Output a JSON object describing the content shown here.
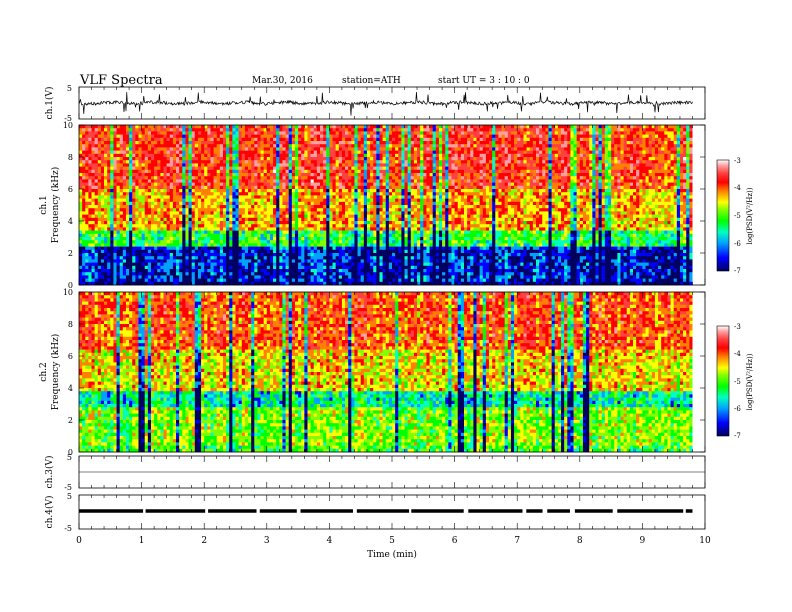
{
  "header": {
    "title": "VLF  Spectra",
    "date": "Mar.30, 2016",
    "station": "station=ATH",
    "start": "start  UT  =   3  : 10 : 0"
  },
  "chart_data": [
    {
      "type": "line",
      "ylabel": "ch.1(V)",
      "ylim": [
        -5,
        5
      ],
      "yticks": [
        "5",
        "-5"
      ],
      "xlim": [
        0,
        10
      ],
      "note": "noisy waveform around 0 V with spikes"
    },
    {
      "type": "heatmap",
      "ylabel": "ch.1\nFrequency  (kHz)",
      "ylabel_lines": [
        "ch.1",
        "Frequency  (kHz)"
      ],
      "ylim": [
        0,
        10
      ],
      "yticks": [
        "0",
        "2",
        "4",
        "6",
        "8",
        "10"
      ],
      "xlim": [
        0,
        9.8
      ],
      "colorbar": {
        "label": "log(PSD(V²/Hz))",
        "range": [
          -7,
          -3
        ],
        "ticks": [
          "-3",
          "-4",
          "-5",
          "-6",
          "-7"
        ],
        "colors": [
          "#000060",
          "#0000ff",
          "#00a0ff",
          "#00ffc0",
          "#00ff00",
          "#80ff00",
          "#ffff00",
          "#ff8000",
          "#ff0000",
          "#ff4040",
          "#ffa0a0",
          "#ffffff"
        ]
      },
      "description_bands": [
        {
          "f_low": 0.0,
          "f_high": 0.3,
          "level": -6.8
        },
        {
          "f_low": 0.3,
          "f_high": 2.5,
          "level": -6.5
        },
        {
          "f_low": 2.5,
          "f_high": 3.5,
          "level": -5.5
        },
        {
          "f_low": 3.5,
          "f_high": 6.0,
          "level": -4.6
        },
        {
          "f_low": 6.0,
          "f_high": 10.0,
          "level": -4.1
        }
      ]
    },
    {
      "type": "heatmap",
      "ylabel_lines": [
        "ch.2",
        "Frequency  (kHz)"
      ],
      "ylim": [
        0,
        10
      ],
      "yticks": [
        "0",
        "2",
        "4",
        "6",
        "8",
        "10"
      ],
      "xlim": [
        0,
        9.8
      ],
      "colorbar": {
        "label": "log(PSD(V²/Hz))",
        "range": [
          -7,
          -3
        ],
        "ticks": [
          "-3",
          "-4",
          "-5",
          "-6",
          "-7"
        ]
      },
      "description_bands": [
        {
          "f_low": 0.0,
          "f_high": 0.4,
          "level": -5.4
        },
        {
          "f_low": 0.4,
          "f_high": 2.8,
          "level": -5.2
        },
        {
          "f_low": 2.8,
          "f_high": 3.8,
          "level": -5.8
        },
        {
          "f_low": 3.8,
          "f_high": 6.5,
          "level": -4.8
        },
        {
          "f_low": 6.5,
          "f_high": 10.0,
          "level": -4.3
        }
      ]
    },
    {
      "type": "line",
      "ylabel": "ch.3(V)",
      "ylim": [
        -5,
        5
      ],
      "yticks": [
        "5",
        "-5"
      ],
      "note": "flat trace near 0 V"
    },
    {
      "type": "line",
      "ylabel": "ch.4(V)",
      "ylim": [
        -5,
        5
      ],
      "yticks": [
        "5",
        "-5"
      ],
      "note": "thick dashed trace near 0 V"
    }
  ],
  "xaxis": {
    "label": "Time  (min)",
    "range": [
      0,
      10
    ],
    "ticks": [
      "0",
      "1",
      "2",
      "3",
      "4",
      "5",
      "6",
      "7",
      "8",
      "9",
      "10"
    ]
  }
}
